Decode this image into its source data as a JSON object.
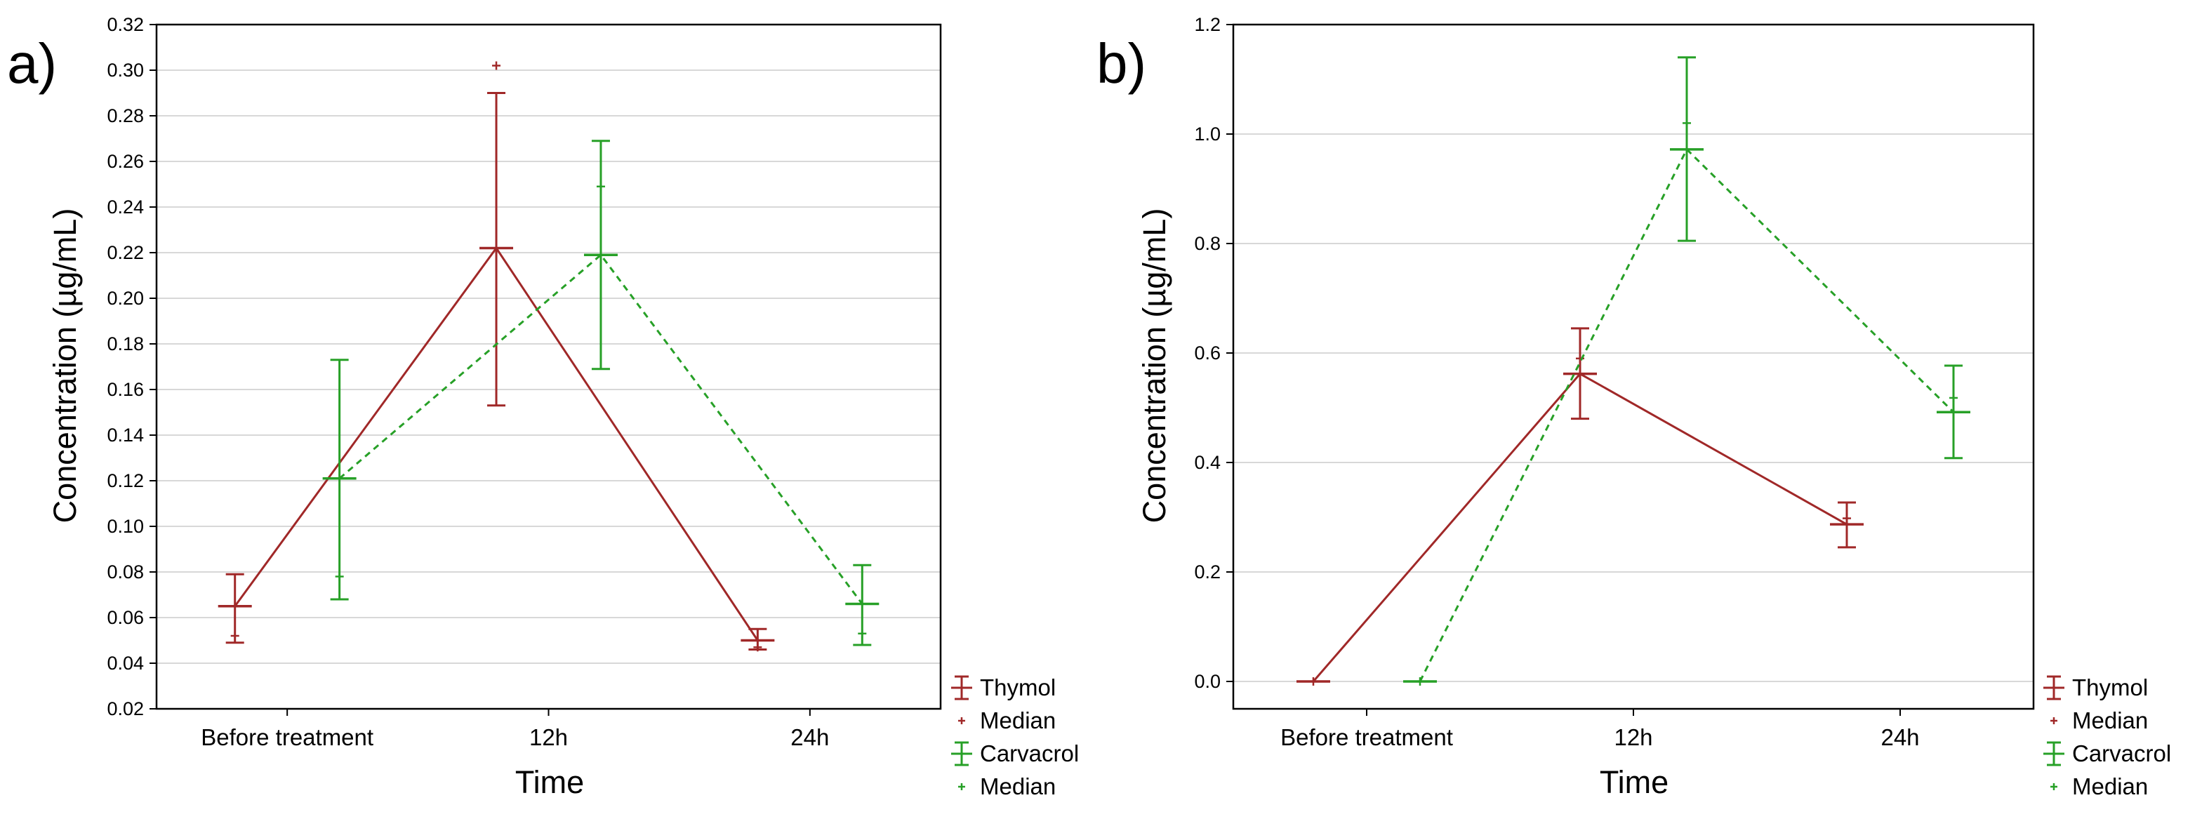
{
  "colors": {
    "thymol": "#a02828",
    "carvacrol": "#27a027",
    "grid": "#d8d8d8",
    "axis": "#000000"
  },
  "chart_data": [
    {
      "type": "line",
      "panel_label": "a)",
      "xlabel": "Time",
      "ylabel": "Concentration (µg/mL)",
      "categories": [
        "Before treatment",
        "12h",
        "24h"
      ],
      "ylim": [
        0.02,
        0.32
      ],
      "yticks": [
        "0.02",
        "0.04",
        "0.06",
        "0.08",
        "0.10",
        "0.12",
        "0.14",
        "0.16",
        "0.18",
        "0.20",
        "0.22",
        "0.24",
        "0.26",
        "0.28",
        "0.30",
        "0.32"
      ],
      "yticks_values": [
        0.02,
        0.04,
        0.06,
        0.08,
        0.1,
        0.12,
        0.14,
        0.16,
        0.18,
        0.2,
        0.22,
        0.24,
        0.26,
        0.28,
        0.3,
        0.32
      ],
      "grid": true,
      "series": [
        {
          "name": "Thymol",
          "color_key": "thymol",
          "dashed": false,
          "x_offset": -0.2,
          "mean": [
            0.065,
            0.222,
            0.05
          ],
          "lower": [
            0.049,
            0.153,
            0.046
          ],
          "upper": [
            0.079,
            0.29,
            0.055
          ],
          "median": [
            0.052,
            0.302,
            0.047
          ]
        },
        {
          "name": "Carvacrol",
          "color_key": "carvacrol",
          "dashed": true,
          "x_offset": 0.2,
          "mean": [
            0.121,
            0.219,
            0.066
          ],
          "lower": [
            0.068,
            0.169,
            0.048
          ],
          "upper": [
            0.173,
            0.269,
            0.083
          ],
          "median": [
            0.078,
            0.249,
            0.053
          ]
        }
      ],
      "legend": [
        "Thymol",
        "Median",
        "Carvacrol",
        "Median"
      ]
    },
    {
      "type": "line",
      "panel_label": "b)",
      "xlabel": "Time",
      "ylabel": "Concentration (µg/mL)",
      "categories": [
        "Before treatment",
        "12h",
        "24h"
      ],
      "ylim": [
        -0.05,
        1.2
      ],
      "yticks": [
        "0.0",
        "0.2",
        "0.4",
        "0.6",
        "0.8",
        "1.0",
        "1.2"
      ],
      "yticks_values": [
        0.0,
        0.2,
        0.4,
        0.6,
        0.8,
        1.0,
        1.2
      ],
      "grid": true,
      "series": [
        {
          "name": "Thymol",
          "color_key": "thymol",
          "dashed": false,
          "x_offset": -0.2,
          "mean": [
            0.0,
            0.562,
            0.287
          ],
          "lower": [
            0.0,
            0.48,
            0.245
          ],
          "upper": [
            0.0,
            0.645,
            0.327
          ],
          "median": [
            0.0,
            0.59,
            0.298
          ]
        },
        {
          "name": "Carvacrol",
          "color_key": "carvacrol",
          "dashed": true,
          "x_offset": 0.2,
          "mean": [
            0.0,
            0.972,
            0.492
          ],
          "lower": [
            0.0,
            0.805,
            0.408
          ],
          "upper": [
            0.0,
            1.14,
            0.577
          ],
          "median": [
            0.0,
            1.02,
            0.518
          ]
        }
      ],
      "legend": [
        "Thymol",
        "Median",
        "Carvacrol",
        "Median"
      ]
    }
  ]
}
